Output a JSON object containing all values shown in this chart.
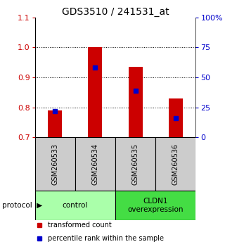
{
  "title": "GDS3510 / 241531_at",
  "samples": [
    "GSM260533",
    "GSM260534",
    "GSM260535",
    "GSM260536"
  ],
  "transformed_counts": [
    0.79,
    1.002,
    0.935,
    0.83
  ],
  "percentile_ranks": [
    0.788,
    0.933,
    0.855,
    0.765
  ],
  "ylim": [
    0.7,
    1.1
  ],
  "yticks": [
    0.7,
    0.8,
    0.9,
    1.0,
    1.1
  ],
  "right_yticks": [
    0,
    25,
    50,
    75,
    100
  ],
  "bar_color": "#cc0000",
  "percentile_color": "#0000cc",
  "bar_width": 0.35,
  "groups": [
    {
      "label": "control",
      "samples": [
        0,
        1
      ],
      "color": "#aaffaa"
    },
    {
      "label": "CLDN1\noverexpression",
      "samples": [
        2,
        3
      ],
      "color": "#44dd44"
    }
  ],
  "legend_items": [
    {
      "color": "#cc0000",
      "label": "transformed count"
    },
    {
      "color": "#0000cc",
      "label": "percentile rank within the sample"
    }
  ],
  "grid_color": "black",
  "background_color": "#ffffff",
  "sample_box_color": "#cccccc",
  "title_fontsize": 10,
  "tick_fontsize": 8
}
